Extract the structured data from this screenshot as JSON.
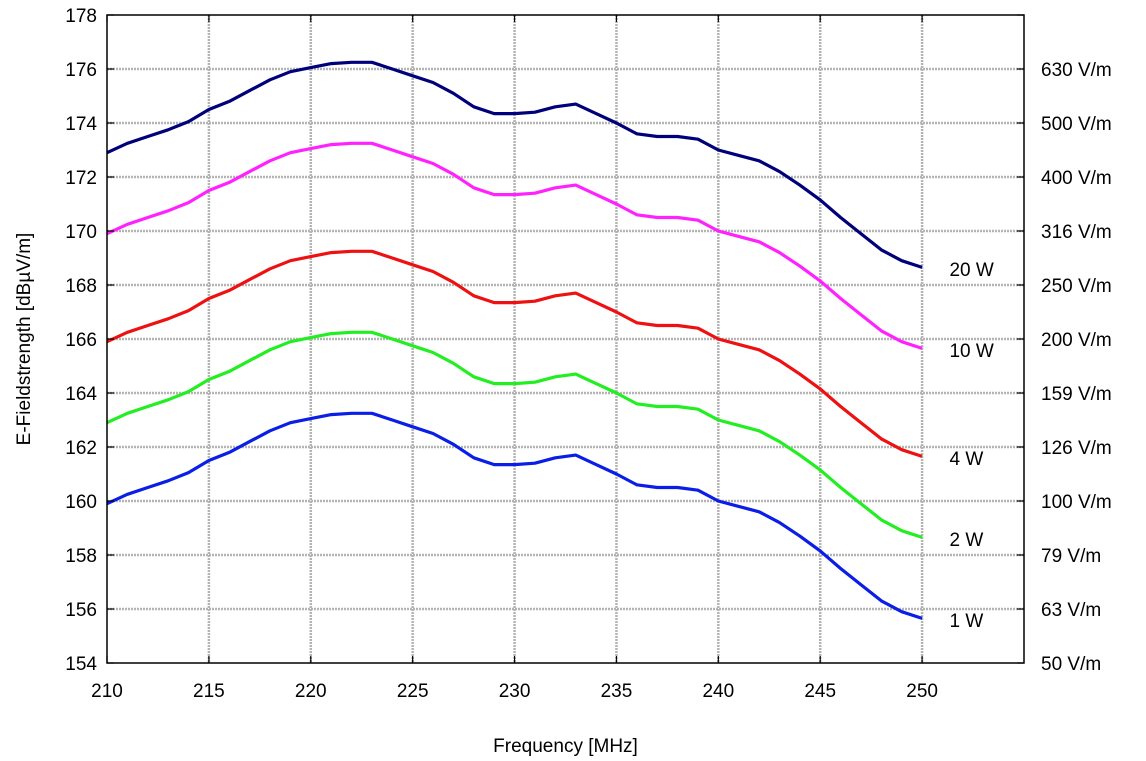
{
  "chart_data": {
    "type": "line",
    "xlabel": "Frequency [MHz]",
    "ylabel": "E-Fieldstrength [dBµV/m]",
    "xlim": [
      210,
      255
    ],
    "ylim": [
      154,
      178
    ],
    "grid": true,
    "x_ticks": [
      210,
      215,
      220,
      225,
      230,
      235,
      240,
      245,
      250
    ],
    "y_ticks": [
      154,
      156,
      158,
      160,
      162,
      164,
      166,
      168,
      170,
      172,
      174,
      176,
      178
    ],
    "y2_ticks": [
      {
        "value": 154,
        "label": "50 V/m"
      },
      {
        "value": 156,
        "label": "63 V/m"
      },
      {
        "value": 158,
        "label": "79 V/m"
      },
      {
        "value": 160,
        "label": "100 V/m"
      },
      {
        "value": 162,
        "label": "126 V/m"
      },
      {
        "value": 164,
        "label": "159 V/m"
      },
      {
        "value": 166,
        "label": "200 V/m"
      },
      {
        "value": 168,
        "label": "250 V/m"
      },
      {
        "value": 170,
        "label": "316 V/m"
      },
      {
        "value": 172,
        "label": "400 V/m"
      },
      {
        "value": 174,
        "label": "500 V/m"
      },
      {
        "value": 176,
        "label": "630 V/m"
      }
    ],
    "x": [
      210,
      211,
      212,
      213,
      214,
      215,
      216,
      217,
      218,
      219,
      220,
      221,
      222,
      223,
      224,
      225,
      226,
      227,
      228,
      229,
      230,
      231,
      232,
      233,
      234,
      235,
      236,
      237,
      238,
      239,
      240,
      241,
      242,
      243,
      244,
      245,
      246,
      247,
      248,
      249,
      250
    ],
    "series": [
      {
        "name": "1 W",
        "color": "#0a1ee6",
        "label_at": [
          251,
          155.6
        ],
        "values": [
          159.9,
          160.25,
          160.5,
          160.75,
          161.05,
          161.5,
          161.8,
          162.2,
          162.6,
          162.9,
          163.05,
          163.2,
          163.25,
          163.25,
          163.0,
          162.75,
          162.5,
          162.1,
          161.6,
          161.35,
          161.35,
          161.4,
          161.6,
          161.7,
          161.35,
          161.0,
          160.6,
          160.5,
          160.5,
          160.4,
          160.0,
          159.8,
          159.6,
          159.2,
          158.7,
          158.15,
          157.5,
          156.9,
          156.3,
          155.9,
          155.65
        ]
      },
      {
        "name": "2 W",
        "color": "#22ee22",
        "label_at": [
          251,
          158.6
        ],
        "values": [
          162.9,
          163.25,
          163.5,
          163.75,
          164.05,
          164.5,
          164.8,
          165.2,
          165.6,
          165.9,
          166.05,
          166.2,
          166.25,
          166.25,
          166.0,
          165.75,
          165.5,
          165.1,
          164.6,
          164.35,
          164.35,
          164.4,
          164.6,
          164.7,
          164.35,
          164.0,
          163.6,
          163.5,
          163.5,
          163.4,
          163.0,
          162.8,
          162.6,
          162.2,
          161.7,
          161.15,
          160.5,
          159.9,
          159.3,
          158.9,
          158.65
        ]
      },
      {
        "name": "4 W",
        "color": "#ee1111",
        "label_at": [
          251,
          161.6
        ],
        "values": [
          165.9,
          166.25,
          166.5,
          166.75,
          167.05,
          167.5,
          167.8,
          168.2,
          168.6,
          168.9,
          169.05,
          169.2,
          169.25,
          169.25,
          169.0,
          168.75,
          168.5,
          168.1,
          167.6,
          167.35,
          167.35,
          167.4,
          167.6,
          167.7,
          167.35,
          167.0,
          166.6,
          166.5,
          166.5,
          166.4,
          166.0,
          165.8,
          165.6,
          165.2,
          164.7,
          164.15,
          163.5,
          162.9,
          162.3,
          161.9,
          161.65
        ]
      },
      {
        "name": "10 W",
        "color": "#ff22ff",
        "label_at": [
          251,
          165.6
        ],
        "values": [
          169.9,
          170.25,
          170.5,
          170.75,
          171.05,
          171.5,
          171.8,
          172.2,
          172.6,
          172.9,
          173.05,
          173.2,
          173.25,
          173.25,
          173.0,
          172.75,
          172.5,
          172.1,
          171.6,
          171.35,
          171.35,
          171.4,
          171.6,
          171.7,
          171.35,
          171.0,
          170.6,
          170.5,
          170.5,
          170.4,
          170.0,
          169.8,
          169.6,
          169.2,
          168.7,
          168.15,
          167.5,
          166.9,
          166.3,
          165.9,
          165.65
        ]
      },
      {
        "name": "20 W",
        "color": "#00007a",
        "label_at": [
          251,
          168.6
        ],
        "values": [
          172.9,
          173.25,
          173.5,
          173.75,
          174.05,
          174.5,
          174.8,
          175.2,
          175.6,
          175.9,
          176.05,
          176.2,
          176.25,
          176.25,
          176.0,
          175.75,
          175.5,
          175.1,
          174.6,
          174.35,
          174.35,
          174.4,
          174.6,
          174.7,
          174.35,
          174.0,
          173.6,
          173.5,
          173.5,
          173.4,
          173.0,
          172.8,
          172.6,
          172.2,
          171.7,
          171.15,
          170.5,
          169.9,
          169.3,
          168.9,
          168.65
        ]
      }
    ]
  }
}
